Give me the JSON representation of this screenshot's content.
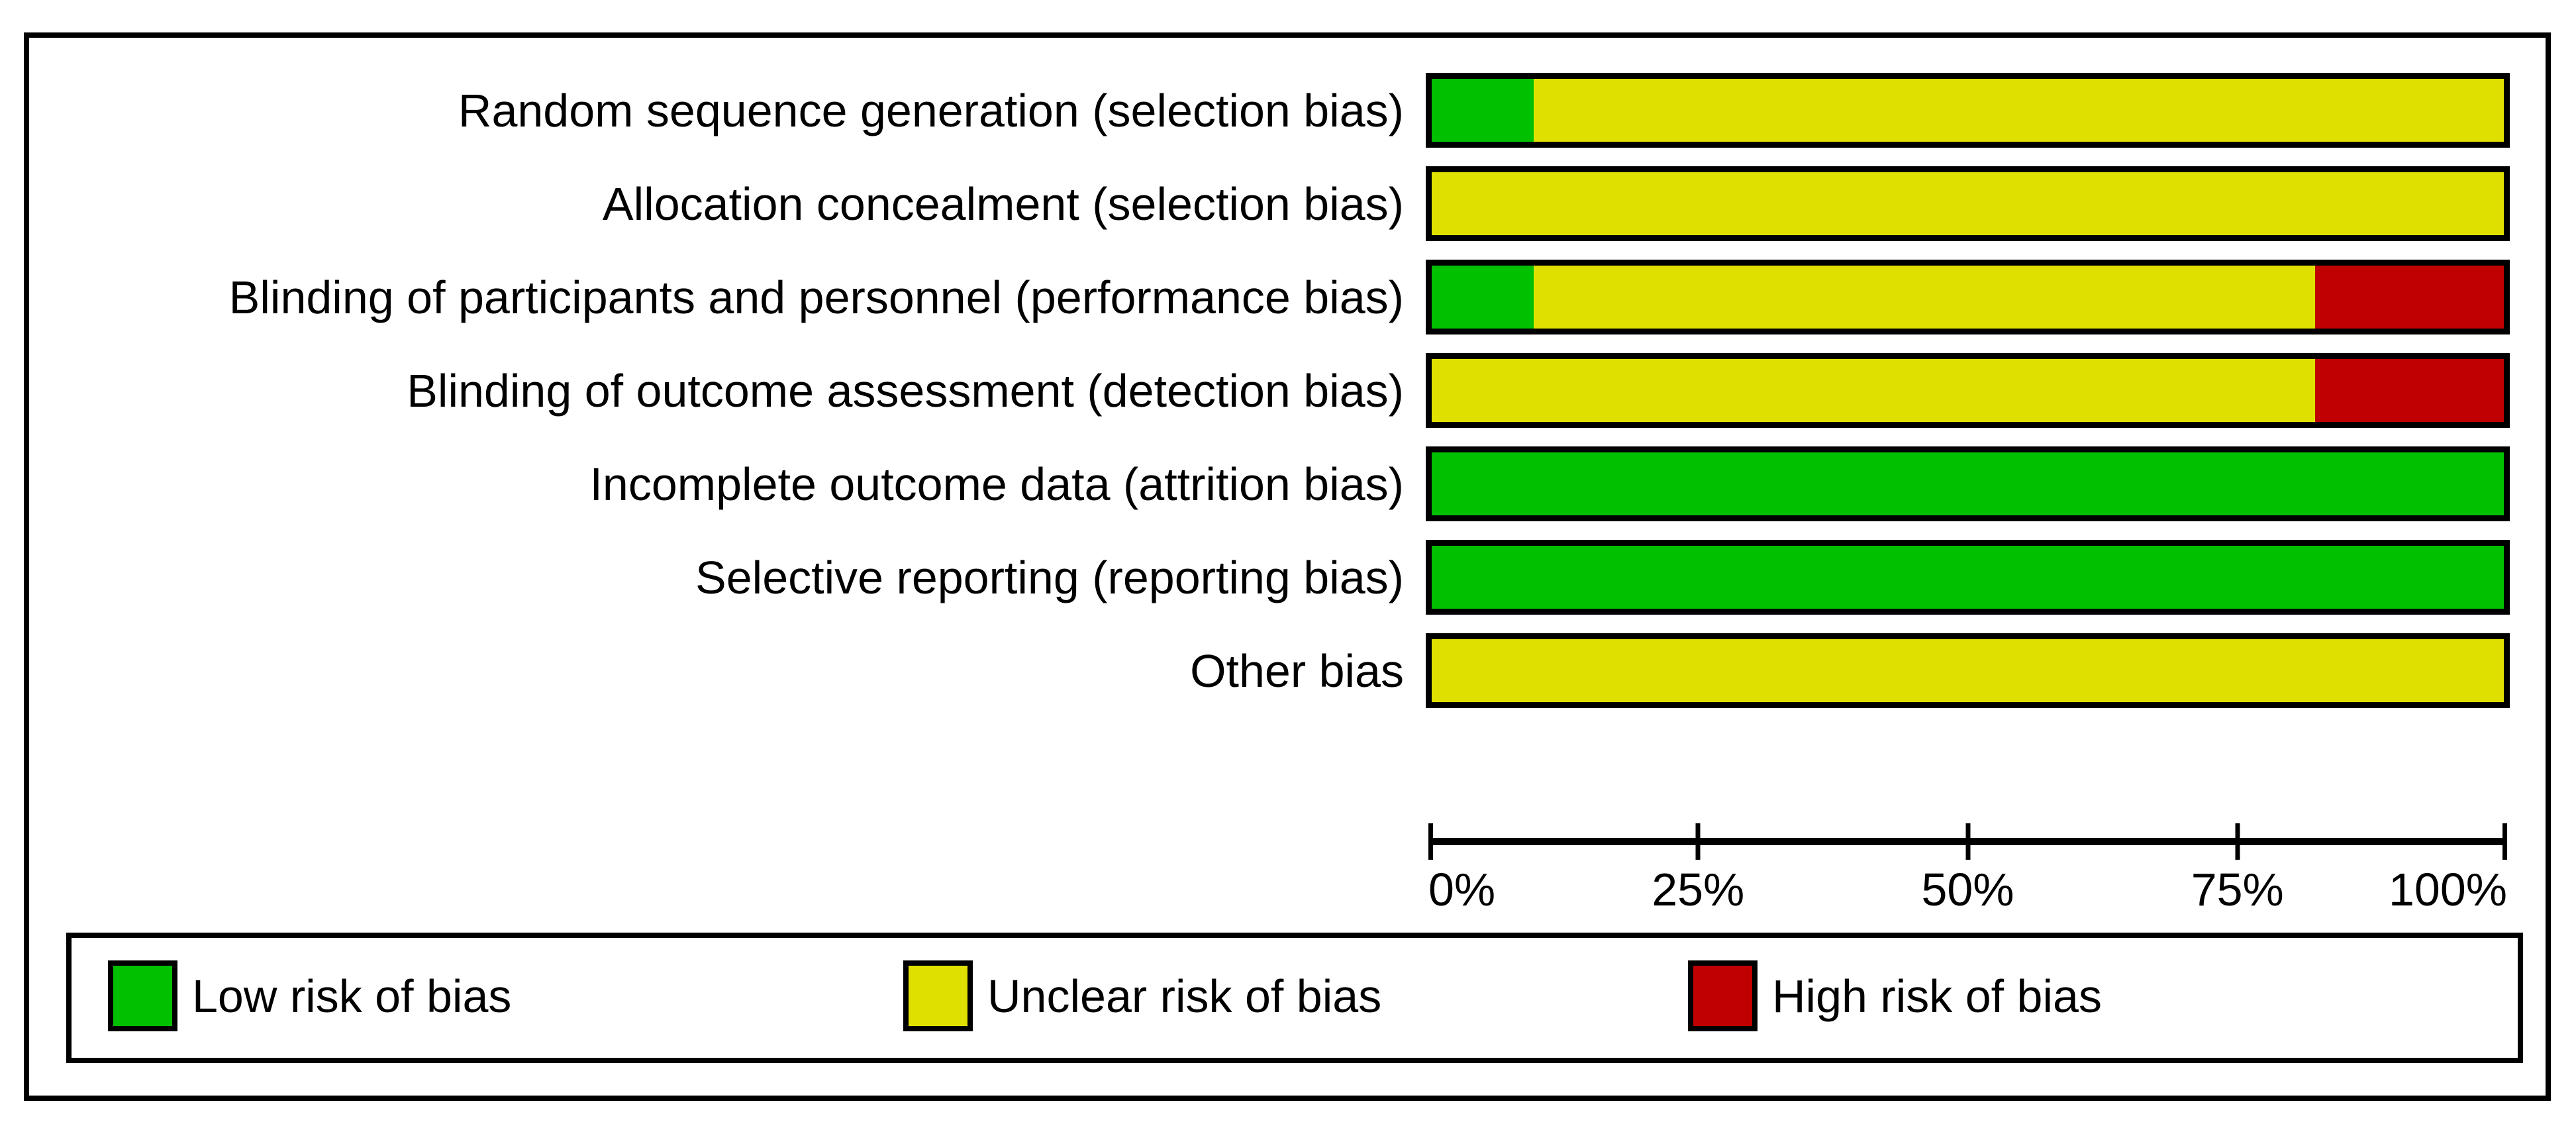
{
  "chart_data": {
    "type": "bar",
    "variant": "horizontal-stacked-100pct",
    "title": "",
    "categories": [
      "Random sequence generation (selection bias)",
      "Allocation concealment (selection bias)",
      "Blinding of participants and personnel (performance bias)",
      "Blinding of outcome assessment (detection bias)",
      "Incomplete outcome data (attrition bias)",
      "Selective reporting (reporting bias)",
      "Other bias"
    ],
    "series": [
      {
        "name": "Low risk of bias",
        "color": "#00C000",
        "values": [
          9.5,
          0,
          9.5,
          0,
          100,
          100,
          0
        ]
      },
      {
        "name": "Unclear risk of bias",
        "color": "#E0E000",
        "values": [
          90.5,
          100,
          72.9,
          82.4,
          0,
          0,
          100
        ]
      },
      {
        "name": "High risk of bias",
        "color": "#C00000",
        "values": [
          0,
          0,
          17.6,
          17.6,
          0,
          0,
          0
        ]
      }
    ],
    "xlabel": "",
    "ylabel": "",
    "x_axis": {
      "range": [
        0,
        100
      ],
      "ticks": [
        {
          "label": "0%",
          "value": 0
        },
        {
          "label": "25%",
          "value": 25
        },
        {
          "label": "50%",
          "value": 50
        },
        {
          "label": "75%",
          "value": 75
        },
        {
          "label": "100%",
          "value": 100
        }
      ]
    },
    "grid": false,
    "legend_position": "bottom",
    "legend": [
      {
        "label": "Low risk of bias",
        "color": "#00C000"
      },
      {
        "label": "Unclear risk of bias",
        "color": "#E0E000"
      },
      {
        "label": "High risk of bias",
        "color": "#C00000"
      }
    ],
    "styling": {
      "bar_border_color": "#000000",
      "frame_border_color": "#000000",
      "background": "#FFFFFF"
    }
  }
}
